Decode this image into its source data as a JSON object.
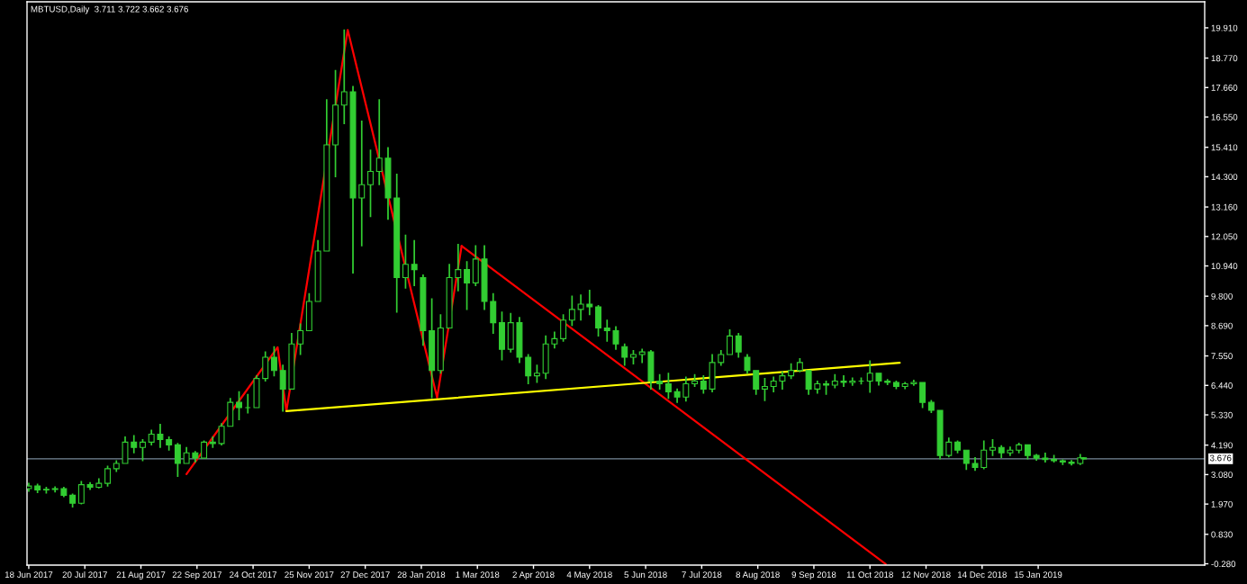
{
  "chart_data": {
    "type": "candlestick",
    "title": "MBTUSD,Daily  3.711 3.722 3.662 3.676",
    "color": "#32cd32",
    "x": [
      "2017-06-18",
      "2017-06-23",
      "2017-06-28",
      "2017-07-03",
      "2017-07-08",
      "2017-07-13",
      "2017-07-18",
      "2017-07-23",
      "2017-07-28",
      "2017-08-02",
      "2017-08-07",
      "2017-08-12",
      "2017-08-17",
      "2017-08-22",
      "2017-08-27",
      "2017-09-01",
      "2017-09-06",
      "2017-09-11",
      "2017-09-16",
      "2017-09-21",
      "2017-09-26",
      "2017-10-01",
      "2017-10-06",
      "2017-10-11",
      "2017-10-16",
      "2017-10-21",
      "2017-10-26",
      "2017-10-31",
      "2017-11-05",
      "2017-11-10",
      "2017-11-15",
      "2017-11-20",
      "2017-11-25",
      "2017-11-30",
      "2017-12-05",
      "2017-12-10",
      "2017-12-15",
      "2017-12-20",
      "2017-12-25",
      "2017-12-30",
      "2018-01-04",
      "2018-01-09",
      "2018-01-14",
      "2018-01-19",
      "2018-01-24",
      "2018-01-29",
      "2018-02-03",
      "2018-02-08",
      "2018-02-13",
      "2018-02-18",
      "2018-02-23",
      "2018-02-28",
      "2018-03-05",
      "2018-03-10",
      "2018-03-15",
      "2018-03-20",
      "2018-03-25",
      "2018-03-30",
      "2018-04-04",
      "2018-04-09",
      "2018-04-14",
      "2018-04-19",
      "2018-04-24",
      "2018-04-29",
      "2018-05-04",
      "2018-05-09",
      "2018-05-14",
      "2018-05-19",
      "2018-05-24",
      "2018-05-29",
      "2018-06-03",
      "2018-06-08",
      "2018-06-13",
      "2018-06-18",
      "2018-06-23",
      "2018-06-28",
      "2018-07-03",
      "2018-07-08",
      "2018-07-13",
      "2018-07-18",
      "2018-07-23",
      "2018-07-28",
      "2018-08-02",
      "2018-08-07",
      "2018-08-12",
      "2018-08-17",
      "2018-08-22",
      "2018-08-27",
      "2018-09-01",
      "2018-09-06",
      "2018-09-11",
      "2018-09-16",
      "2018-09-21",
      "2018-09-26",
      "2018-10-01",
      "2018-10-06",
      "2018-10-11",
      "2018-10-16",
      "2018-10-21",
      "2018-10-26",
      "2018-10-31",
      "2018-11-05",
      "2018-11-10",
      "2018-11-15",
      "2018-11-20",
      "2018-11-25",
      "2018-11-30",
      "2018-12-05",
      "2018-12-10",
      "2018-12-15",
      "2018-12-20",
      "2018-12-25",
      "2018-12-30",
      "2019-01-04",
      "2019-01-09",
      "2019-01-14",
      "2019-01-19",
      "2019-01-24",
      "2019-01-29",
      "2019-02-03",
      "2019-02-08",
      "2019-02-10"
    ],
    "ohlc": [
      [
        2.55,
        2.75,
        2.45,
        2.65
      ],
      [
        2.65,
        2.72,
        2.4,
        2.5
      ],
      [
        2.5,
        2.6,
        2.38,
        2.52
      ],
      [
        2.52,
        2.62,
        2.43,
        2.55
      ],
      [
        2.55,
        2.6,
        2.25,
        2.3
      ],
      [
        2.3,
        2.35,
        1.86,
        2.0
      ],
      [
        2.0,
        2.82,
        1.98,
        2.7
      ],
      [
        2.7,
        2.78,
        2.52,
        2.6
      ],
      [
        2.6,
        2.92,
        2.58,
        2.75
      ],
      [
        2.75,
        3.4,
        2.65,
        3.3
      ],
      [
        3.3,
        3.6,
        3.2,
        3.5
      ],
      [
        3.5,
        4.5,
        3.5,
        4.3
      ],
      [
        4.3,
        4.55,
        3.9,
        4.1
      ],
      [
        4.1,
        4.4,
        3.6,
        4.3
      ],
      [
        4.3,
        4.75,
        4.2,
        4.6
      ],
      [
        4.6,
        4.97,
        4.1,
        4.4
      ],
      [
        4.4,
        4.5,
        4.0,
        4.2
      ],
      [
        4.2,
        4.25,
        3.01,
        3.5
      ],
      [
        3.5,
        4.1,
        3.5,
        3.9
      ],
      [
        3.9,
        3.95,
        3.55,
        3.7
      ],
      [
        3.7,
        4.35,
        3.7,
        4.3
      ],
      [
        4.3,
        4.5,
        4.1,
        4.25
      ],
      [
        4.25,
        5.0,
        4.2,
        4.9
      ],
      [
        4.9,
        5.95,
        4.9,
        5.8
      ],
      [
        5.8,
        6.2,
        5.15,
        5.6
      ],
      [
        5.6,
        6.1,
        5.4,
        5.6
      ],
      [
        5.6,
        6.8,
        5.6,
        6.7
      ],
      [
        6.7,
        7.7,
        6.6,
        7.5
      ],
      [
        7.5,
        7.9,
        6.8,
        7.0
      ],
      [
        7.0,
        7.2,
        5.47,
        6.3
      ],
      [
        6.3,
        8.4,
        6.3,
        8.0
      ],
      [
        8.0,
        8.75,
        7.6,
        8.5
      ],
      [
        8.5,
        9.9,
        8.5,
        9.6
      ],
      [
        9.6,
        11.9,
        9.6,
        11.5
      ],
      [
        11.5,
        17.2,
        11.5,
        15.5
      ],
      [
        15.5,
        18.3,
        14.3,
        17.0
      ],
      [
        17.0,
        19.83,
        16.3,
        17.5
      ],
      [
        17.5,
        17.7,
        10.67,
        13.5
      ],
      [
        13.5,
        16.4,
        11.7,
        14.0
      ],
      [
        14.0,
        15.3,
        12.8,
        14.5
      ],
      [
        14.5,
        17.2,
        14.0,
        15.0
      ],
      [
        15.0,
        15.4,
        12.7,
        13.5
      ],
      [
        13.5,
        14.4,
        9.2,
        10.5
      ],
      [
        10.5,
        12.1,
        10.1,
        11.0
      ],
      [
        11.0,
        11.9,
        10.2,
        10.8
      ],
      [
        10.5,
        10.6,
        7.95,
        8.5
      ],
      [
        8.5,
        9.7,
        5.98,
        7.0
      ],
      [
        7.0,
        9.1,
        6.9,
        8.6
      ],
      [
        8.6,
        11.0,
        8.6,
        10.5
      ],
      [
        10.5,
        11.75,
        10.0,
        10.8
      ],
      [
        10.8,
        11.1,
        9.3,
        10.3
      ],
      [
        10.3,
        11.7,
        10.2,
        11.2
      ],
      [
        11.2,
        11.7,
        9.3,
        9.6
      ],
      [
        9.6,
        9.9,
        8.4,
        8.8
      ],
      [
        8.8,
        9.2,
        7.4,
        7.8
      ],
      [
        7.8,
        9.15,
        7.7,
        8.8
      ],
      [
        8.8,
        9.0,
        7.3,
        7.5
      ],
      [
        7.5,
        7.6,
        6.5,
        6.8
      ],
      [
        6.8,
        7.2,
        6.55,
        6.9
      ],
      [
        6.9,
        8.3,
        6.7,
        8.0
      ],
      [
        8.0,
        8.45,
        7.85,
        8.2
      ],
      [
        8.2,
        9.1,
        8.1,
        8.9
      ],
      [
        8.9,
        9.8,
        8.7,
        9.3
      ],
      [
        9.3,
        9.85,
        8.9,
        9.5
      ],
      [
        9.5,
        10.02,
        9.1,
        9.4
      ],
      [
        9.4,
        9.45,
        8.3,
        8.6
      ],
      [
        8.6,
        8.9,
        8.1,
        8.5
      ],
      [
        8.5,
        8.65,
        7.8,
        8.0
      ],
      [
        7.9,
        8.0,
        7.2,
        7.5
      ],
      [
        7.5,
        7.75,
        7.25,
        7.6
      ],
      [
        7.6,
        7.8,
        7.3,
        7.7
      ],
      [
        7.7,
        7.75,
        6.3,
        6.6
      ],
      [
        6.6,
        6.85,
        6.3,
        6.5
      ],
      [
        6.5,
        6.9,
        5.95,
        6.2
      ],
      [
        6.2,
        6.3,
        5.8,
        6.0
      ],
      [
        6.0,
        6.75,
        5.85,
        6.5
      ],
      [
        6.5,
        6.85,
        6.4,
        6.6
      ],
      [
        6.6,
        6.8,
        6.15,
        6.3
      ],
      [
        6.3,
        7.6,
        6.2,
        7.3
      ],
      [
        7.3,
        7.75,
        7.2,
        7.6
      ],
      [
        7.6,
        8.53,
        7.6,
        8.3
      ],
      [
        8.3,
        8.4,
        7.5,
        7.7
      ],
      [
        7.5,
        7.6,
        6.9,
        7.0
      ],
      [
        7.0,
        7.0,
        6.1,
        6.3
      ],
      [
        6.3,
        6.7,
        5.87,
        6.4
      ],
      [
        6.4,
        6.75,
        6.2,
        6.6
      ],
      [
        6.6,
        6.95,
        6.3,
        6.8
      ],
      [
        6.8,
        7.25,
        6.7,
        7.0
      ],
      [
        7.0,
        7.45,
        6.95,
        7.3
      ],
      [
        7.0,
        7.0,
        6.1,
        6.3
      ],
      [
        6.3,
        6.6,
        6.15,
        6.5
      ],
      [
        6.5,
        6.6,
        6.1,
        6.45
      ],
      [
        6.45,
        6.85,
        6.35,
        6.6
      ],
      [
        6.6,
        6.8,
        6.4,
        6.55
      ],
      [
        6.55,
        6.72,
        6.44,
        6.6
      ],
      [
        6.6,
        6.72,
        6.49,
        6.6
      ],
      [
        6.6,
        7.36,
        6.18,
        6.9
      ],
      [
        6.9,
        6.9,
        6.45,
        6.6
      ],
      [
        6.6,
        6.66,
        6.47,
        6.55
      ],
      [
        6.55,
        6.6,
        6.32,
        6.4
      ],
      [
        6.4,
        6.55,
        6.32,
        6.5
      ],
      [
        6.5,
        6.63,
        6.44,
        6.55
      ],
      [
        6.55,
        6.55,
        5.6,
        5.8
      ],
      [
        5.8,
        5.87,
        5.42,
        5.5
      ],
      [
        5.5,
        5.5,
        3.67,
        3.8
      ],
      [
        3.8,
        4.46,
        3.75,
        4.3
      ],
      [
        4.3,
        4.35,
        3.9,
        4.0
      ],
      [
        4.0,
        4.0,
        3.27,
        3.5
      ],
      [
        3.5,
        3.72,
        3.24,
        3.35
      ],
      [
        3.35,
        4.35,
        3.3,
        4.0
      ],
      [
        4.0,
        4.4,
        3.8,
        4.1
      ],
      [
        4.1,
        4.17,
        3.72,
        3.9
      ],
      [
        3.9,
        4.12,
        3.8,
        4.0
      ],
      [
        4.0,
        4.26,
        3.9,
        4.2
      ],
      [
        4.2,
        4.2,
        3.67,
        3.8
      ],
      [
        3.8,
        3.84,
        3.62,
        3.7
      ],
      [
        3.7,
        3.89,
        3.55,
        3.65
      ],
      [
        3.65,
        3.8,
        3.55,
        3.6
      ],
      [
        3.6,
        3.63,
        3.46,
        3.55
      ],
      [
        3.55,
        3.61,
        3.44,
        3.5
      ],
      [
        3.5,
        3.84,
        3.46,
        3.71
      ],
      [
        3.711,
        3.722,
        3.662,
        3.676
      ]
    ],
    "series": [
      {
        "type": "line",
        "color": "#ff0000",
        "x": [
          "2017-09-16",
          "2017-11-07",
          "2017-11-12",
          "2017-12-17",
          "2018-02-06",
          "2018-02-20"
        ],
        "values": [
          3.1,
          7.88,
          5.47,
          19.83,
          5.98,
          11.69
        ]
      },
      {
        "type": "line",
        "color": "#ff0000",
        "x": [
          "2018-02-20",
          "2018-10-20"
        ],
        "values": [
          11.69,
          -0.29
        ]
      },
      {
        "type": "line",
        "color": "#ffff00",
        "x": [
          "2017-11-12",
          "2018-10-28"
        ],
        "values": [
          5.47,
          7.29
        ]
      }
    ],
    "ref_lines": [
      {
        "axis": "y",
        "value": 3.676,
        "label": "3.676",
        "color": "#778899"
      }
    ],
    "xlim": [
      "2017-06-17",
      "2019-04-20"
    ],
    "ylim": [
      -0.33,
      20.89
    ],
    "xticks": [
      {
        "value": "2017-06-18",
        "label": "18 Jun 2017"
      },
      {
        "value": "2017-07-20",
        "label": "20 Jul 2017"
      },
      {
        "value": "2017-08-21",
        "label": "21 Aug 2017"
      },
      {
        "value": "2017-09-22",
        "label": "22 Sep 2017"
      },
      {
        "value": "2017-10-24",
        "label": "24 Oct 2017"
      },
      {
        "value": "2017-11-25",
        "label": "25 Nov 2017"
      },
      {
        "value": "2017-12-27",
        "label": "27 Dec 2017"
      },
      {
        "value": "2018-01-28",
        "label": "28 Jan 2018"
      },
      {
        "value": "2018-03-01",
        "label": "1 Mar 2018"
      },
      {
        "value": "2018-04-02",
        "label": "2 Apr 2018"
      },
      {
        "value": "2018-05-04",
        "label": "4 May 2018"
      },
      {
        "value": "2018-06-05",
        "label": "5 Jun 2018"
      },
      {
        "value": "2018-07-07",
        "label": "7 Jul 2018"
      },
      {
        "value": "2018-08-08",
        "label": "8 Aug 2018"
      },
      {
        "value": "2018-09-09",
        "label": "9 Sep 2018"
      },
      {
        "value": "2018-10-11",
        "label": "11 Oct 2018"
      },
      {
        "value": "2018-11-12",
        "label": "12 Nov 2018"
      },
      {
        "value": "2018-12-14",
        "label": "14 Dec 2018"
      },
      {
        "value": "2019-01-15",
        "label": "15 Jan 2019"
      }
    ],
    "yticks": [
      {
        "value": -0.28,
        "label": "-0.280"
      },
      {
        "value": 0.83,
        "label": "0.830"
      },
      {
        "value": 1.97,
        "label": "1.970"
      },
      {
        "value": 3.08,
        "label": "3.080"
      },
      {
        "value": 4.19,
        "label": "4.190"
      },
      {
        "value": 5.33,
        "label": "5.330"
      },
      {
        "value": 6.44,
        "label": "6.440"
      },
      {
        "value": 7.55,
        "label": "7.550"
      },
      {
        "value": 8.69,
        "label": "8.690"
      },
      {
        "value": 9.8,
        "label": "9.800"
      },
      {
        "value": 10.94,
        "label": "10.940"
      },
      {
        "value": 12.05,
        "label": "12.050"
      },
      {
        "value": 13.16,
        "label": "13.160"
      },
      {
        "value": 14.3,
        "label": "14.300"
      },
      {
        "value": 15.41,
        "label": "15.410"
      },
      {
        "value": 16.55,
        "label": "16.550"
      },
      {
        "value": 17.66,
        "label": "17.660"
      },
      {
        "value": 18.77,
        "label": "18.770"
      },
      {
        "value": 19.91,
        "label": "19.910"
      }
    ]
  }
}
